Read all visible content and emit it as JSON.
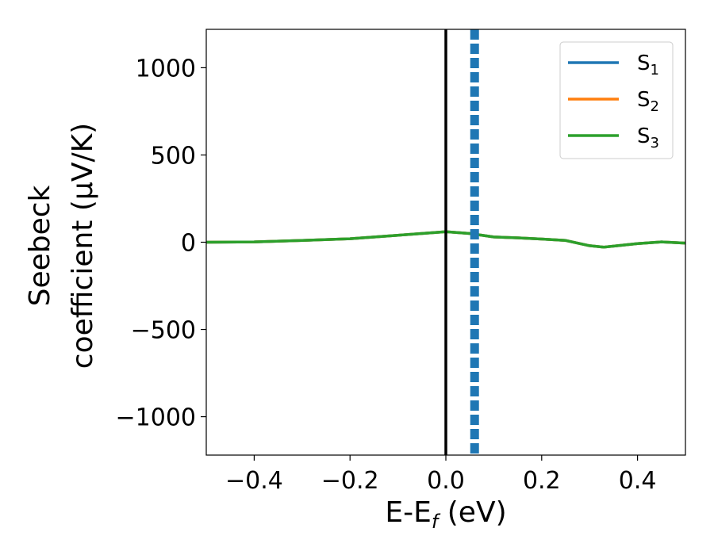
{
  "chart_data": {
    "type": "line",
    "xlabel": "E-E",
    "xlabel_sub": "f",
    "xlabel_unit": " (eV)",
    "ylabel_line1": "Seebeck",
    "ylabel_line2": "coefficient  (μV/K)",
    "xlim": [
      -0.5,
      0.5
    ],
    "ylim": [
      -1220,
      1220
    ],
    "xticks": [
      -0.4,
      -0.2,
      0.0,
      0.2,
      0.4
    ],
    "xtick_labels": [
      "−0.4",
      "−0.2",
      "0.0",
      "0.2",
      "0.4"
    ],
    "yticks": [
      -1000,
      -500,
      0,
      500,
      1000
    ],
    "ytick_labels": [
      "−1000",
      "−500",
      "0",
      "500",
      "1000"
    ],
    "legend_position": "top-right",
    "series": [
      {
        "name": "S",
        "subscript": "1",
        "color": "#1f77b4",
        "x": [
          -0.5,
          -0.4,
          -0.3,
          -0.2,
          -0.1,
          0.0,
          0.05,
          0.1,
          0.15,
          0.2,
          0.25,
          0.3,
          0.33,
          0.4,
          0.45,
          0.5
        ],
        "y": [
          0,
          2,
          10,
          20,
          40,
          60,
          50,
          30,
          25,
          18,
          10,
          -20,
          -28,
          -8,
          2,
          -5
        ]
      },
      {
        "name": "S",
        "subscript": "2",
        "color": "#ff7f0e",
        "x": [
          -0.5,
          -0.4,
          -0.3,
          -0.2,
          -0.1,
          0.0,
          0.05,
          0.1,
          0.15,
          0.2,
          0.25,
          0.3,
          0.33,
          0.4,
          0.45,
          0.5
        ],
        "y": [
          0,
          2,
          10,
          20,
          40,
          60,
          50,
          30,
          25,
          18,
          10,
          -20,
          -28,
          -8,
          2,
          -5
        ]
      },
      {
        "name": "S",
        "subscript": "3",
        "color": "#2ca02c",
        "x": [
          -0.5,
          -0.4,
          -0.3,
          -0.2,
          -0.1,
          0.0,
          0.05,
          0.1,
          0.15,
          0.2,
          0.25,
          0.3,
          0.33,
          0.4,
          0.45,
          0.5
        ],
        "y": [
          0,
          2,
          10,
          20,
          40,
          60,
          50,
          30,
          25,
          18,
          10,
          -20,
          -28,
          -8,
          2,
          -5
        ]
      }
    ],
    "reference_lines": [
      {
        "x": 0.0,
        "color": "#000000",
        "style": "solid"
      },
      {
        "x": 0.06,
        "color": "#1f77b4",
        "style": "dashed"
      }
    ]
  }
}
